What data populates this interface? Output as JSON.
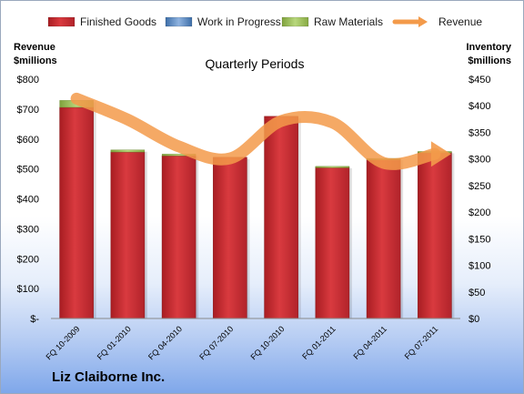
{
  "chart_data": {
    "type": "bar",
    "title": "Quarterly Periods",
    "company": "Liz Claiborne Inc.",
    "categories": [
      "FQ 10-2009",
      "FQ 01-2010",
      "FQ 04-2010",
      "FQ 07-2010",
      "FQ 10-2010",
      "FQ 01-2011",
      "FQ 04-2011",
      "FQ 07-2011"
    ],
    "stacked": true,
    "series": [
      {
        "name": "Finished Goods",
        "axis": "right",
        "color": "#c8262b",
        "values": [
          397,
          313,
          306,
          303,
          380,
          285,
          300,
          313
        ]
      },
      {
        "name": "Work in Progress",
        "axis": "right",
        "color": "#4f81bd",
        "values": [
          0,
          0,
          0,
          0,
          0,
          0,
          0,
          0
        ]
      },
      {
        "name": "Raw Materials",
        "axis": "right",
        "color": "#9bbb59",
        "values": [
          13,
          4,
          3,
          0,
          0,
          1,
          1,
          1
        ]
      },
      {
        "name": "Revenue",
        "type": "line",
        "axis": "left",
        "color": "#f39a4a",
        "values": [
          735,
          665,
          575,
          535,
          660,
          655,
          520,
          550
        ]
      }
    ],
    "left_axis": {
      "label_line1": "Revenue",
      "label_line2": "$millions",
      "ylim": [
        0,
        800
      ],
      "step": 100,
      "tick_labels": [
        "$-",
        "$100",
        "$200",
        "$300",
        "$400",
        "$500",
        "$600",
        "$700",
        "$800"
      ]
    },
    "right_axis": {
      "label_line1": "Inventory",
      "label_line2": "$millions",
      "ylim": [
        0,
        450
      ],
      "step": 50,
      "tick_labels": [
        "$0",
        "$50",
        "$100",
        "$150",
        "$200",
        "$250",
        "$300",
        "$350",
        "$400",
        "$450"
      ]
    },
    "grid": false,
    "legend_position": "top"
  }
}
